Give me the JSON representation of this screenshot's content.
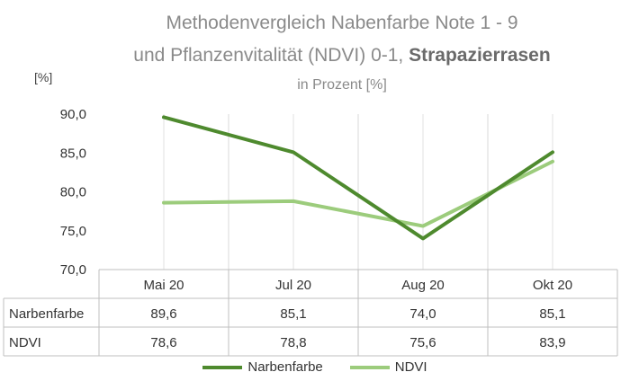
{
  "chart_data": {
    "type": "line",
    "title_line1": "Methodenvergleich Nabenfarbe Note 1 - 9",
    "title_line2_prefix": "und Pflanzenvitalität (NDVI) 0-1, ",
    "title_line2_bold": "Strapazierrasen",
    "subtitle": "in Prozent [%]",
    "ylabel": "[%]",
    "categories": [
      "Mai 20",
      "Jul 20",
      "Aug 20",
      "Okt 20"
    ],
    "ylim": [
      70,
      90
    ],
    "yticks": [
      "70,0",
      "75,0",
      "80,0",
      "85,0",
      "90,0"
    ],
    "series": [
      {
        "name": "Narbenfarbe",
        "values": [
          89.6,
          85.1,
          74.0,
          85.1
        ],
        "labels": [
          "89,6",
          "85,1",
          "74,0",
          "85,1"
        ],
        "color": "#4e8a2e"
      },
      {
        "name": "NDVI",
        "values": [
          78.6,
          78.8,
          75.6,
          83.9
        ],
        "labels": [
          "78,6",
          "78,8",
          "75,6",
          "83,9"
        ],
        "color": "#9ccc7c"
      }
    ],
    "grid": false,
    "legend": "bottom",
    "data_table": true
  }
}
